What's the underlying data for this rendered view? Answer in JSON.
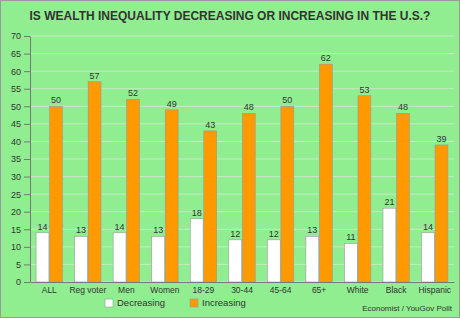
{
  "chart_data": {
    "type": "bar",
    "title": "IS WEALTH INEQUALITY DECREASING OR INCREASING IN THE U.S.?",
    "categories": [
      "ALL",
      "Reg voter",
      "Men",
      "Women",
      "18-29",
      "30-44",
      "45-64",
      "65+",
      "White",
      "Black",
      "Hispanic"
    ],
    "series": [
      {
        "name": "Decreasing",
        "color": "#FFFFFF",
        "values": [
          14,
          13,
          14,
          13,
          18,
          12,
          12,
          13,
          11,
          21,
          14
        ]
      },
      {
        "name": "Increasing",
        "color": "#FF9900",
        "values": [
          50,
          57,
          52,
          49,
          43,
          48,
          50,
          62,
          53,
          48,
          39
        ]
      }
    ],
    "ylim": [
      0,
      70
    ],
    "yticks": [
      0,
      5,
      10,
      15,
      20,
      25,
      30,
      35,
      40,
      45,
      50,
      55,
      60,
      65,
      70
    ],
    "grid": true,
    "data_labels": true,
    "legend": "bottom",
    "source": "Economist / YouGov Pollt"
  }
}
